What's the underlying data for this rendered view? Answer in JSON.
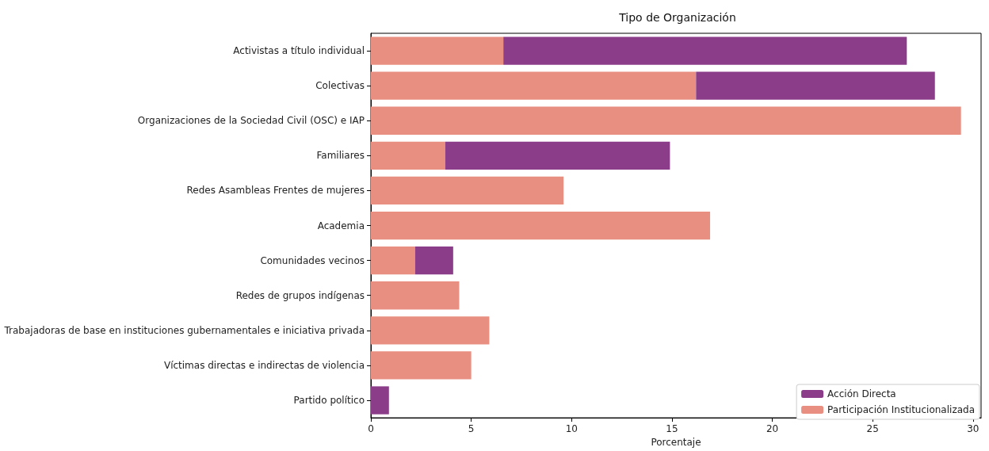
{
  "chart_data": {
    "type": "bar",
    "orientation": "horizontal",
    "stacked": true,
    "title": "Tipo de Organización",
    "xlabel": "Porcentaje",
    "categories": [
      "Activistas a título individual",
      "Colectivas",
      "Organizaciones de la Sociedad Civil (OSC) e IAP",
      "Familiares",
      "Redes Asambleas Frentes de mujeres",
      "Academia",
      "Comunidades vecinos",
      "Redes de grupos indígenas",
      "Trabajadoras de base en instituciones gubernamentales e iniciativa privada",
      "Víctimas directas e indirectas de violencia",
      "Partido político"
    ],
    "series": [
      {
        "name": "Participación Institucionalizada",
        "color": "#e88f81",
        "values": [
          6.6,
          16.2,
          29.4,
          3.7,
          9.6,
          16.9,
          2.2,
          4.4,
          5.9,
          5.0,
          null
        ]
      },
      {
        "name": "Acción Directa",
        "color": "#8b3d8a",
        "values": [
          20.1,
          11.9,
          null,
          11.2,
          null,
          null,
          1.9,
          null,
          null,
          null,
          0.9
        ]
      }
    ],
    "xlim": [
      0,
      30.4
    ],
    "xticks": [
      0,
      5,
      10,
      15,
      20,
      25,
      30
    ],
    "grid": false,
    "legend": "bottom right"
  }
}
